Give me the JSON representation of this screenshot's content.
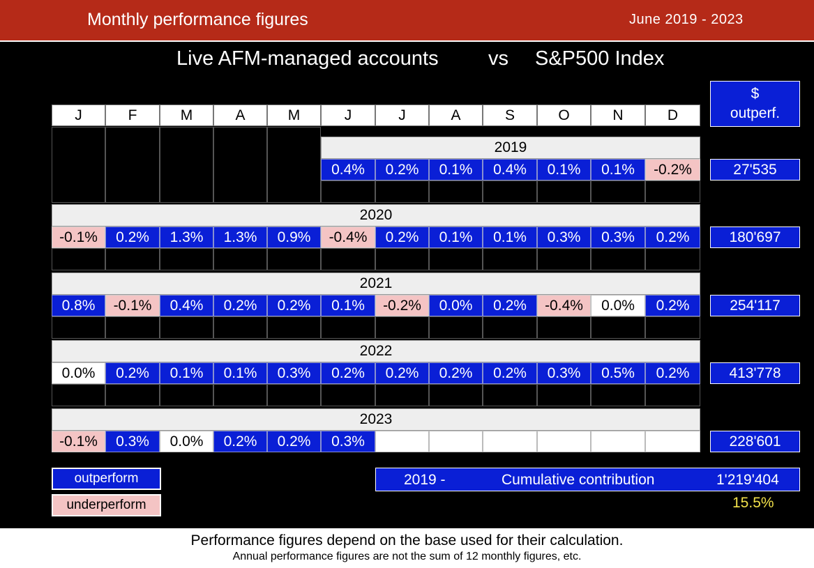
{
  "header": {
    "title": "Monthly performance figures",
    "date_range": "June  2019  -  2023"
  },
  "subtitle": {
    "left": "Live AFM-managed accounts",
    "vs": "vs",
    "right": "S&P500 Index"
  },
  "months": [
    "J",
    "F",
    "M",
    "A",
    "M",
    "J",
    "J",
    "A",
    "S",
    "O",
    "N",
    "D"
  ],
  "outperf_header": {
    "line1": "$",
    "line2": "outperf."
  },
  "years": [
    {
      "year": "2019",
      "start": 5,
      "values": [
        "0.4%",
        "0.2%",
        "0.1%",
        "0.4%",
        "0.1%",
        "0.1%",
        "-0.2%"
      ],
      "types": [
        "out",
        "out",
        "out",
        "out",
        "out",
        "out",
        "under"
      ],
      "outperf": "27'535"
    },
    {
      "year": "2020",
      "start": 0,
      "values": [
        "-0.1%",
        "0.2%",
        "1.3%",
        "1.3%",
        "0.9%",
        "-0.4%",
        "0.2%",
        "0.1%",
        "0.1%",
        "0.3%",
        "0.3%",
        "0.2%"
      ],
      "types": [
        "under",
        "out",
        "out",
        "out",
        "out",
        "under",
        "out",
        "out",
        "out",
        "out",
        "out",
        "out"
      ],
      "outperf": "180'697"
    },
    {
      "year": "2021",
      "start": 0,
      "values": [
        "0.8%",
        "-0.1%",
        "0.4%",
        "0.2%",
        "0.2%",
        "0.1%",
        "-0.2%",
        "0.0%",
        "0.2%",
        "-0.4%",
        "0.0%",
        "0.2%"
      ],
      "types": [
        "out",
        "under",
        "out",
        "out",
        "out",
        "out",
        "under",
        "out",
        "out",
        "under",
        "neutral",
        "out"
      ],
      "outperf": "254'117"
    },
    {
      "year": "2022",
      "start": 0,
      "values": [
        "0.0%",
        "0.2%",
        "0.1%",
        "0.1%",
        "0.3%",
        "0.2%",
        "0.2%",
        "0.2%",
        "0.2%",
        "0.3%",
        "0.5%",
        "0.2%"
      ],
      "types": [
        "neutral",
        "out",
        "out",
        "out",
        "out",
        "out",
        "out",
        "out",
        "out",
        "out",
        "out",
        "out"
      ],
      "outperf": "413'778"
    },
    {
      "year": "2023",
      "start": 0,
      "values": [
        "-0.1%",
        "0.3%",
        "0.0%",
        "0.2%",
        "0.2%",
        "0.3%"
      ],
      "types": [
        "under",
        "out",
        "neutral",
        "out",
        "out",
        "out"
      ],
      "outperf": "228'601"
    }
  ],
  "legend": {
    "outperform": "outperform",
    "underperform": "underperform"
  },
  "cumulative": {
    "from": "2019 -",
    "label": "Cumulative  contribution",
    "value": "1'219'404",
    "percent": "15.5%"
  },
  "footer": {
    "line1": "Performance figures depend on the base used for their calculation.",
    "line2": "Annual performance figures are not the sum of 12 monthly figures, etc."
  },
  "colors": {
    "header": "#b52a18",
    "outperform": "#0a1fd6",
    "underperform": "#f4c4c4",
    "percent": "#f2e14a"
  }
}
